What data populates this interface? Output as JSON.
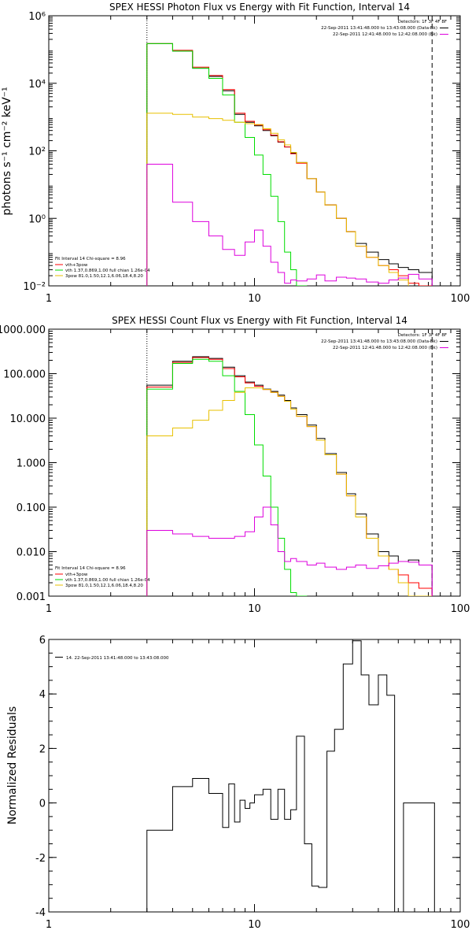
{
  "colors": {
    "data": "#000000",
    "vth_3pow": "#ff0000",
    "vth": "#00dd00",
    "3pow": "#e8c000",
    "bk": "#dd00dd"
  },
  "chart_data": [
    {
      "type": "line",
      "title": "SPEX HESSI Photon Flux vs Energy with Fit Function, Interval 14",
      "xlabel": "",
      "ylabel": "photons s⁻¹ cm⁻² keV⁻¹",
      "xscale": "log",
      "yscale": "log",
      "xlim": [
        1,
        100
      ],
      "ylim": [
        0.01,
        1000000
      ],
      "x_ticks": [
        1,
        10,
        100
      ],
      "x_tick_labels": [
        "1",
        "10",
        "100"
      ],
      "y_ticks": [
        0.01,
        1,
        100,
        10000,
        1000000
      ],
      "y_tick_labels": [
        "10⁻²",
        "10⁰",
        "10²",
        "10⁴",
        "10⁶"
      ],
      "vlines": [
        {
          "x": 3,
          "style": "dotted"
        },
        {
          "x": 73,
          "style": "dashed"
        }
      ],
      "fit_info": {
        "line": "Fit Interval 14    Chi-square = 8.96",
        "labels": [
          "vth+3pow",
          "vth 1.37,0.869,1.00  full chian 1.26e-04",
          "3pow 81.0,1.50,12.1,6.06,18.4,8.20"
        ]
      },
      "legend": {
        "title": "Detectors: 1F 3F 4F 8F",
        "entries": [
          "22-Sep-2011 13:41:48.000 to 13:43:08.000 (Data-Bk)",
          "22-Sep-2011 12:41:48.000 to 12:42:08.000 (Bk)"
        ],
        "placement": "top-right"
      },
      "edges": [
        3.0,
        4.0,
        5.0,
        6.0,
        7.0,
        8.0,
        9.0,
        10.0,
        11.0,
        12.0,
        13.0,
        14.0,
        15.0,
        16.0,
        18.0,
        20.0,
        22.0,
        25.0,
        28.0,
        31.0,
        35.0,
        40.0,
        45.0,
        50.0,
        56.0,
        63.0,
        73.0
      ],
      "series": [
        {
          "name": "Data-Bk",
          "color_key": "data",
          "values": [
            150000,
            90000,
            28000,
            16000,
            6000,
            1200,
            700,
            550,
            400,
            280,
            180,
            130,
            85,
            45,
            15,
            6,
            2.5,
            1,
            0.4,
            0.18,
            0.1,
            0.06,
            0.045,
            0.035,
            0.03,
            0.025
          ]
        },
        {
          "name": "vth+3pow",
          "color_key": "vth_3pow",
          "values": [
            150000,
            95000,
            30000,
            17000,
            6500,
            1300,
            750,
            580,
            420,
            290,
            185,
            130,
            82,
            43,
            15,
            6,
            2.5,
            1,
            0.4,
            0.15,
            0.07,
            0.04,
            0.03,
            0.02,
            0.012,
            0.01
          ]
        },
        {
          "name": "vth",
          "color_key": "vth",
          "values": [
            150000,
            90000,
            28000,
            14000,
            4500,
            700,
            250,
            75,
            20,
            4.5,
            0.8,
            0.1,
            0.03,
            0.008
          ]
        },
        {
          "name": "3pow",
          "color_key": "3pow",
          "values": [
            1300,
            1200,
            1000,
            900,
            800,
            700,
            640,
            600,
            450,
            330,
            210,
            150,
            90,
            45,
            15,
            6,
            2.5,
            1,
            0.4,
            0.15,
            0.07,
            0.04,
            0.025,
            0.015
          ]
        },
        {
          "name": "Bk",
          "color_key": "bk",
          "values": [
            40,
            3,
            0.8,
            0.3,
            0.12,
            0.08,
            0.2,
            0.45,
            0.15,
            0.05,
            0.025,
            0.012,
            0.015,
            0.014,
            0.016,
            0.021,
            0.014,
            0.018,
            0.017,
            0.016,
            0.013,
            0.012,
            0.015,
            0.017,
            0.022,
            0.016
          ]
        }
      ]
    },
    {
      "type": "line",
      "title": "SPEX HESSI Count Flux vs Energy with Fit Function, Interval 14",
      "xlabel": "",
      "ylabel": "",
      "xscale": "log",
      "yscale": "log",
      "xlim": [
        1,
        100
      ],
      "ylim": [
        0.001,
        1000
      ],
      "x_ticks": [
        1,
        10,
        100
      ],
      "x_tick_labels": [
        "1",
        "10",
        "100"
      ],
      "y_ticks": [
        0.001,
        0.01,
        0.1,
        1,
        10,
        100,
        1000
      ],
      "y_tick_labels": [
        "0.001",
        "0.010",
        "0.100",
        "1.000",
        "10.000",
        "100.000",
        "1000.000"
      ],
      "vlines": [
        {
          "x": 3,
          "style": "dotted"
        },
        {
          "x": 73,
          "style": "dashed"
        }
      ],
      "fit_info": {
        "line": "Fit Interval 14    Chi-square = 8.96",
        "labels": [
          "vth+3pow",
          "vth 1.37,0.869,1.00  full chian 1.26e-04",
          "3pow 81.0,1.50,12.1,6.06,18.4,8.20"
        ]
      },
      "legend": {
        "title": "Detectors: 1F 3F 4F 8F",
        "entries": [
          "22-Sep-2011 13:41:48.000 to 13:43:08.000 (Data-Bk)",
          "22-Sep-2011 12:41:48.000 to 12:42:08.000 (Bk)"
        ],
        "placement": "top-right"
      },
      "edges": [
        3.0,
        4.0,
        5.0,
        6.0,
        7.0,
        8.0,
        9.0,
        10.0,
        11.0,
        12.0,
        13.0,
        14.0,
        15.0,
        16.0,
        18.0,
        20.0,
        22.0,
        25.0,
        28.0,
        31.0,
        35.0,
        40.0,
        45.0,
        50.0,
        56.0,
        63.0,
        73.0
      ],
      "series": [
        {
          "name": "Data-Bk",
          "color_key": "data",
          "values": [
            55,
            190,
            240,
            220,
            140,
            90,
            65,
            55,
            45,
            40,
            33,
            25,
            17,
            12,
            7,
            3.5,
            1.6,
            0.6,
            0.2,
            0.07,
            0.025,
            0.01,
            0.008,
            0.006,
            0.0065,
            0.005
          ]
        },
        {
          "name": "vth+3pow",
          "color_key": "vth_3pow",
          "values": [
            50,
            180,
            230,
            210,
            130,
            85,
            62,
            52,
            44,
            38,
            31,
            24,
            16,
            11,
            6.5,
            3.2,
            1.5,
            0.55,
            0.18,
            0.06,
            0.02,
            0.008,
            0.004,
            0.003,
            0.002,
            0.0015
          ]
        },
        {
          "name": "vth",
          "color_key": "vth",
          "values": [
            45,
            170,
            210,
            190,
            90,
            40,
            12,
            2.5,
            0.5,
            0.1,
            0.02,
            0.004,
            0.0012,
            0.0008
          ]
        },
        {
          "name": "3pow",
          "color_key": "3pow",
          "values": [
            4,
            6,
            9,
            15,
            25,
            38,
            48,
            48,
            44,
            38,
            31,
            24,
            16,
            11,
            6.5,
            3.2,
            1.5,
            0.55,
            0.18,
            0.06,
            0.02,
            0.008,
            0.004,
            0.002,
            0.001,
            0.0008
          ]
        },
        {
          "name": "Bk",
          "color_key": "bk",
          "values": [
            0.03,
            0.025,
            0.022,
            0.02,
            0.02,
            0.022,
            0.028,
            0.06,
            0.1,
            0.04,
            0.01,
            0.006,
            0.007,
            0.006,
            0.005,
            0.0055,
            0.0045,
            0.004,
            0.0045,
            0.005,
            0.0042,
            0.0048,
            0.0055,
            0.006,
            0.0058,
            0.005
          ]
        }
      ]
    },
    {
      "type": "line",
      "title": "",
      "xlabel": "",
      "ylabel": "Normalized Residuals",
      "xscale": "log",
      "yscale": "linear",
      "xlim": [
        1,
        100
      ],
      "ylim": [
        -4,
        6
      ],
      "x_ticks": [
        1,
        10,
        100
      ],
      "x_tick_labels": [
        "1",
        "10",
        "100"
      ],
      "y_ticks": [
        -4,
        -2,
        0,
        2,
        4,
        6
      ],
      "y_tick_labels": [
        "-4",
        "-2",
        "0",
        "2",
        "4",
        "6"
      ],
      "legend": {
        "entries": [
          "14. 22-Sep-2011 13:41:48.000 to 13:43:08.000"
        ],
        "placement": "top-left"
      },
      "edges": [
        3.0,
        4.0,
        4.5,
        5.0,
        6.0,
        7.0,
        7.5,
        8.0,
        8.5,
        9.0,
        9.5,
        10.0,
        11.0,
        12.0,
        13.0,
        14.0,
        15.0,
        16.0,
        17.5,
        19.0,
        20.5,
        22.5,
        24.5,
        27.0,
        30.0,
        33.0,
        36.0,
        40.0,
        44.0,
        48.0,
        53.0,
        58.0,
        64.0,
        70.0,
        75.0
      ],
      "series": [
        {
          "name": "14. 22-Sep-2011 13:41:48.000 to 13:43:08.000",
          "color_key": "data",
          "values": [
            -1.0,
            0.6,
            0.6,
            0.9,
            0.35,
            -0.9,
            0.7,
            -0.7,
            0.1,
            -0.2,
            0.0,
            0.3,
            0.5,
            -0.6,
            0.5,
            -0.6,
            -0.25,
            2.45,
            -1.5,
            -3.05,
            -3.1,
            1.9,
            2.7,
            5.1,
            5.95,
            4.7,
            3.6,
            4.7,
            3.95,
            -4.0,
            0,
            0,
            0,
            0
          ]
        }
      ]
    }
  ]
}
